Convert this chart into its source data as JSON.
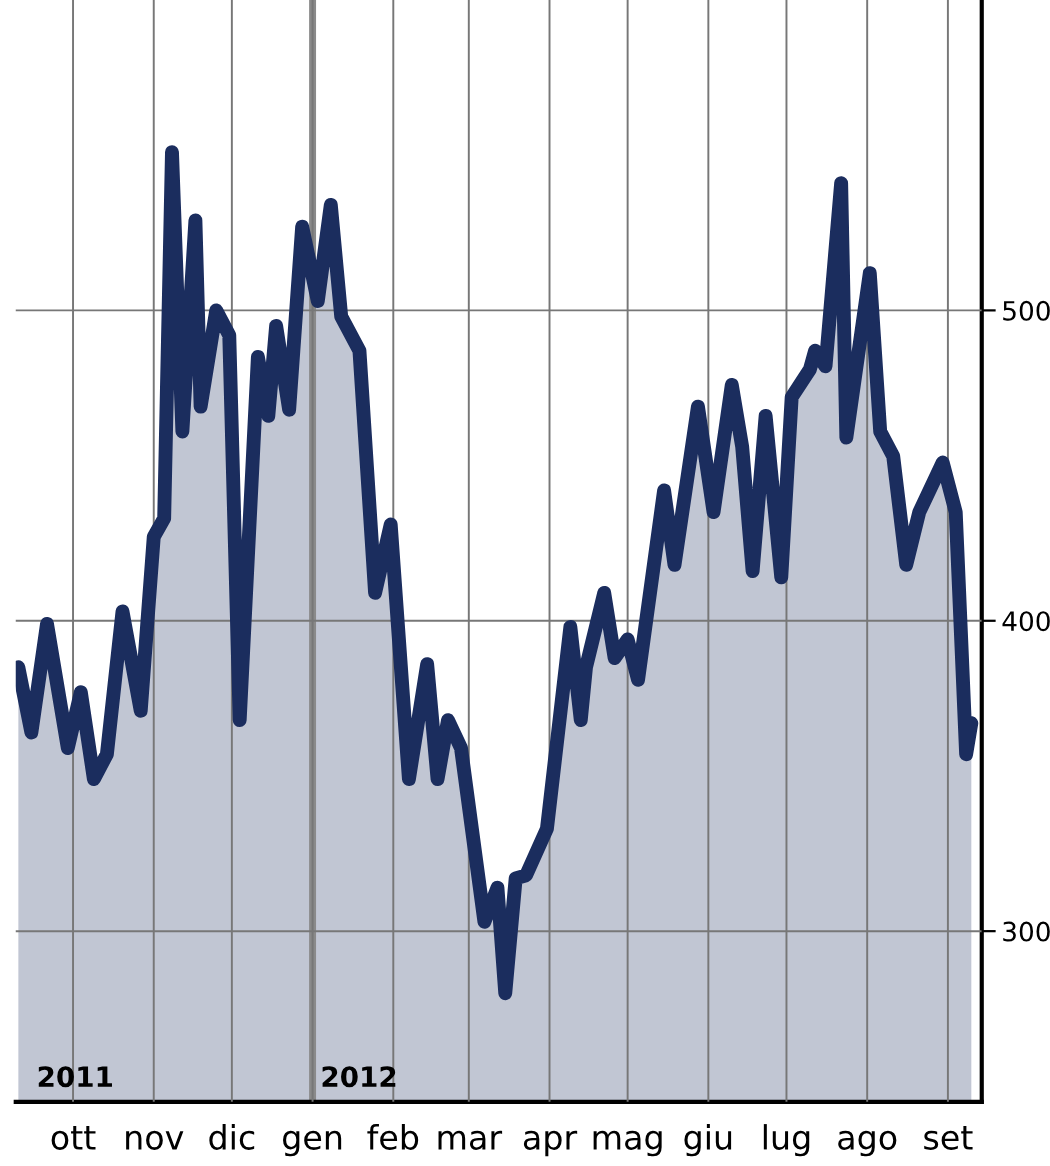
{
  "chart_data": {
    "type": "area",
    "x": [
      "2011-09-10",
      "2011-09-15",
      "2011-09-21",
      "2011-09-29",
      "2011-10-04",
      "2011-10-09",
      "2011-10-14",
      "2011-10-20",
      "2011-10-27",
      "2011-11-01",
      "2011-11-05",
      "2011-11-08",
      "2011-11-12",
      "2011-11-17",
      "2011-11-19",
      "2011-11-25",
      "2011-11-30",
      "2011-12-04",
      "2011-12-11",
      "2011-12-15",
      "2011-12-18",
      "2011-12-23",
      "2011-12-28",
      "2012-01-03",
      "2012-01-08",
      "2012-01-12",
      "2012-01-19",
      "2012-01-25",
      "2012-01-31",
      "2012-02-07",
      "2012-02-14",
      "2012-02-18",
      "2012-02-22",
      "2012-02-27",
      "2012-03-07",
      "2012-03-12",
      "2012-03-15",
      "2012-03-19",
      "2012-03-23",
      "2012-03-31",
      "2012-04-09",
      "2012-04-13",
      "2012-04-15",
      "2012-04-22",
      "2012-04-26",
      "2012-05-01",
      "2012-05-05",
      "2012-05-15",
      "2012-05-19",
      "2012-05-28",
      "2012-06-03",
      "2012-06-10",
      "2012-06-14",
      "2012-06-18",
      "2012-06-23",
      "2012-06-29",
      "2012-07-03",
      "2012-07-10",
      "2012-07-12",
      "2012-07-16",
      "2012-07-22",
      "2012-07-24",
      "2012-08-02",
      "2012-08-06",
      "2012-08-11",
      "2012-08-16",
      "2012-08-21",
      "2012-08-30",
      "2012-09-04",
      "2012-09-08",
      "2012-09-10"
    ],
    "series": [
      {
        "color": "#1b2d5e",
        "values": [
          385,
          364,
          399,
          359,
          377,
          349,
          357,
          403,
          371,
          427,
          433,
          551,
          461,
          529,
          469,
          500,
          492,
          368,
          485,
          466,
          495,
          468,
          527,
          503,
          534,
          498,
          487,
          409,
          431,
          349,
          386,
          349,
          368,
          359,
          303,
          314,
          280,
          317,
          318,
          333,
          398,
          368,
          385,
          409,
          388,
          394,
          381,
          442,
          418,
          469,
          435,
          476,
          456,
          416,
          466,
          414,
          472,
          481,
          487,
          482,
          541,
          459,
          512,
          461,
          453,
          418,
          435,
          451,
          435,
          357,
          367
        ]
      }
    ],
    "xlim": [
      "2011-09-09",
      "2012-09-14"
    ],
    "xticks": [
      {
        "value": "2011-10-01",
        "label": "ott"
      },
      {
        "value": "2011-11-01",
        "label": "nov"
      },
      {
        "value": "2011-12-01",
        "label": "dic"
      },
      {
        "value": "2012-01-01",
        "label": "gen"
      },
      {
        "value": "2012-02-01",
        "label": "feb"
      },
      {
        "value": "2012-03-01",
        "label": "mar"
      },
      {
        "value": "2012-04-01",
        "label": "apr"
      },
      {
        "value": "2012-05-01",
        "label": "mag"
      },
      {
        "value": "2012-06-01",
        "label": "giu"
      },
      {
        "value": "2012-07-01",
        "label": "lug"
      },
      {
        "value": "2012-08-01",
        "label": "ago"
      },
      {
        "value": "2012-09-01",
        "label": "set"
      }
    ],
    "ylim": [
      245,
      600
    ],
    "yticks": [
      300,
      400,
      500
    ],
    "grid": true,
    "ref_lines": [
      {
        "axis": "x",
        "value": "2012-01-01",
        "label": "2012",
        "color": "#8a8a8a"
      }
    ],
    "annotations": [
      "2011"
    ]
  }
}
